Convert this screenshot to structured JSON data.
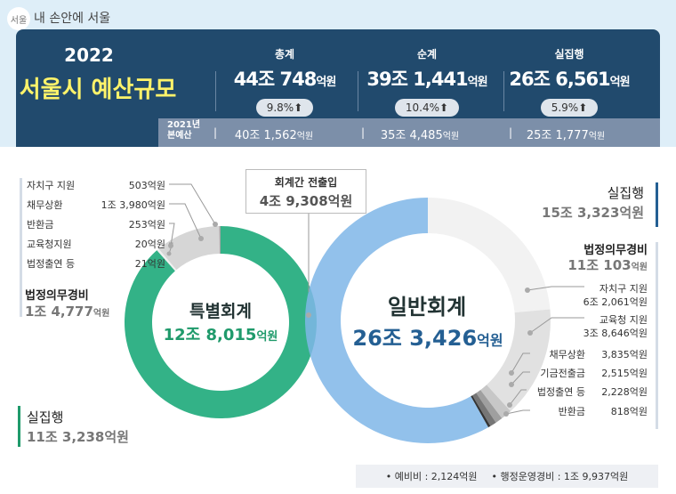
{
  "header": {
    "logo": "서울",
    "slogan": "내 손안에 서울"
  },
  "summary": {
    "year": "2022",
    "title": "서울시 예산규모",
    "columns": [
      {
        "label": "총계",
        "amount": "44조 748",
        "unit": "억원",
        "change": "9.8%",
        "arrow": "up-arrow-icon"
      },
      {
        "label": "순계",
        "amount": "39조 1,441",
        "unit": "억원",
        "change": "10.4%",
        "arrow": "up-arrow-icon"
      },
      {
        "label": "실집행",
        "amount": "26조 6,561",
        "unit": "억원",
        "change": "5.9%",
        "arrow": "up-arrow-icon"
      }
    ],
    "prev_label_1": "2021년",
    "prev_label_2": "본예산",
    "prev": [
      {
        "amount": "40조 1,562",
        "unit": "억원"
      },
      {
        "amount": "35조 4,485",
        "unit": "억원"
      },
      {
        "amount": "25조 1,777",
        "unit": "억원"
      }
    ]
  },
  "special": {
    "name": "특별회계",
    "total": "12조 8,015",
    "unit": "억원",
    "exec_label": "실집행",
    "exec_value": "11조 3,238억원",
    "oblig_label": "법정의무경비",
    "oblig_amount": "1조 4,777",
    "oblig_unit": "억원",
    "items": [
      {
        "label": "자치구 지원",
        "value": "503억원"
      },
      {
        "label": "채무상환",
        "value": "1조 3,980억원"
      },
      {
        "label": "반환금",
        "value": "253억원"
      },
      {
        "label": "교육청지원",
        "value": "20억원"
      },
      {
        "label": "법정출연 등",
        "value": "21억원"
      }
    ]
  },
  "transfer": {
    "label": "회계간 전출입",
    "value": "4조 9,308억원"
  },
  "general": {
    "name": "일반회계",
    "total": "26조 3,426",
    "unit": "억원",
    "exec_label": "실집행",
    "exec_value": "15조 3,323억원",
    "oblig_label": "법정의무경비",
    "oblig_amount": "11조 103",
    "oblig_unit": "억원",
    "items": [
      {
        "label": "자치구 지원",
        "value": "6조 2,061억원"
      },
      {
        "label": "교육청 지원",
        "value": "3조 8,646억원"
      },
      {
        "label": "채무상환",
        "value": "3,835억원"
      },
      {
        "label": "기금전출금",
        "value": "2,515억원"
      },
      {
        "label": "법정출연 등",
        "value": "2,228억원"
      },
      {
        "label": "반환금",
        "value": "818억원"
      }
    ]
  },
  "footnote": {
    "item1": "• 예비비 : 2,124억원",
    "item2": "• 행정운영경비 : 1조 9,937억원"
  },
  "colors": {
    "panel": "#214a6d",
    "title": "#fff36a",
    "special": "#33b287",
    "general": "#7fb6e8",
    "general_text": "#245f93",
    "special_text": "#1f9a6b"
  },
  "chart_data": [
    {
      "type": "pie",
      "title": "특별회계",
      "unit": "억원",
      "categories": [
        "실집행",
        "자치구 지원",
        "채무상환",
        "반환금",
        "교육청지원",
        "법정출연 등"
      ],
      "values": [
        113238,
        503,
        13980,
        253,
        20,
        21
      ],
      "colors": [
        "#33b287",
        "#f0f0f0",
        "#d6d6d6",
        "#a8a8a8",
        "#707070",
        "#505050"
      ]
    },
    {
      "type": "pie",
      "title": "일반회계",
      "unit": "억원",
      "categories": [
        "자치구 지원",
        "교육청 지원",
        "채무상환",
        "기금전출금",
        "법정출연 등",
        "반환금",
        "실집행"
      ],
      "values": [
        62061,
        38646,
        3835,
        2515,
        2228,
        818,
        153323
      ],
      "colors": [
        "#f0f0f0",
        "#dcdcdc",
        "#bdbdbd",
        "#8e8e8e",
        "#5e5e5e",
        "#111111",
        "#7fb6e8"
      ]
    }
  ]
}
